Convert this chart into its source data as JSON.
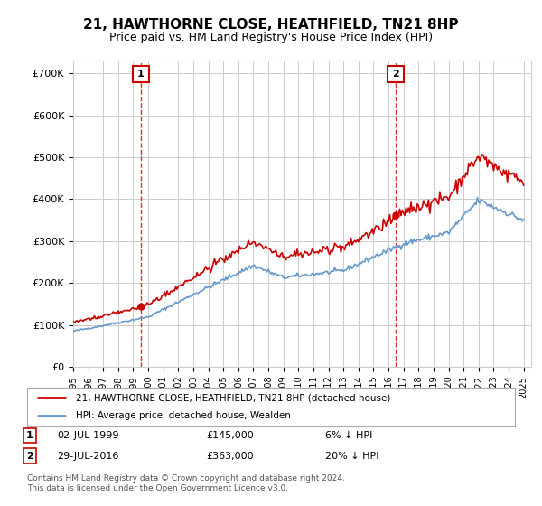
{
  "title": "21, HAWTHORNE CLOSE, HEATHFIELD, TN21 8HP",
  "subtitle": "Price paid vs. HM Land Registry's House Price Index (HPI)",
  "legend_line1": "21, HAWTHORNE CLOSE, HEATHFIELD, TN21 8HP (detached house)",
  "legend_line2": "HPI: Average price, detached house, Wealden",
  "sale1_date": "02-JUL-1999",
  "sale1_price": "£145,000",
  "sale1_hpi": "6% ↓ HPI",
  "sale1_year": 1999.5,
  "sale1_value": 145000,
  "sale2_date": "29-JUL-2016",
  "sale2_price": "£363,000",
  "sale2_hpi": "20% ↓ HPI",
  "sale2_year": 2016.5,
  "sale2_value": 363000,
  "footer": "Contains HM Land Registry data © Crown copyright and database right 2024.\nThis data is licensed under the Open Government Licence v3.0.",
  "ylim": [
    0,
    730000
  ],
  "background_color": "#ffffff",
  "grid_color": "#cccccc",
  "hpi_line_color": "#6699cc",
  "price_line_color": "#cc0000",
  "sale_marker_color": "#cc0000",
  "dashed_line_color": "#cc0000"
}
